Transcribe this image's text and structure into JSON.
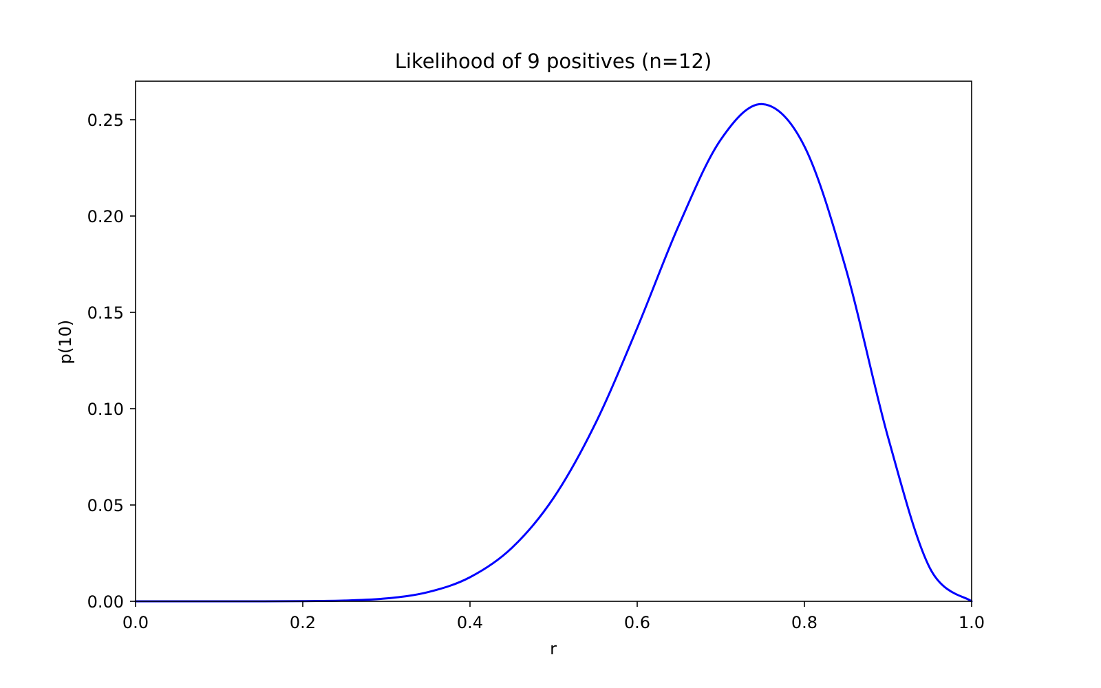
{
  "chart_data": {
    "type": "line",
    "title": "Likelihood of 9 positives (n=12)",
    "xlabel": "r",
    "ylabel": "p(10)",
    "xlim": [
      0.0,
      1.0
    ],
    "ylim": [
      0.0,
      0.27
    ],
    "xticks": [
      0.0,
      0.2,
      0.4,
      0.6,
      0.8,
      1.0
    ],
    "xtick_labels": [
      "0.0",
      "0.2",
      "0.4",
      "0.6",
      "0.8",
      "1.0"
    ],
    "yticks": [
      0.0,
      0.05,
      0.1,
      0.15,
      0.2,
      0.25
    ],
    "ytick_labels": [
      "0.00",
      "0.05",
      "0.10",
      "0.15",
      "0.20",
      "0.25"
    ],
    "grid": false,
    "series": [
      {
        "color": "#0000ff",
        "x": [
          0.0,
          0.05,
          0.1,
          0.15,
          0.2,
          0.25,
          0.3,
          0.35,
          0.4,
          0.45,
          0.5,
          0.55,
          0.6,
          0.65,
          0.7,
          0.75,
          0.8,
          0.85,
          0.9,
          0.95,
          1.0
        ],
        "y": [
          0.0,
          0.0,
          0.0,
          0.0,
          0.0001,
          0.0004,
          0.0015,
          0.0048,
          0.0125,
          0.0277,
          0.0537,
          0.0923,
          0.1419,
          0.1954,
          0.2397,
          0.2581,
          0.2362,
          0.172,
          0.0852,
          0.0173,
          0.0
        ]
      }
    ]
  }
}
